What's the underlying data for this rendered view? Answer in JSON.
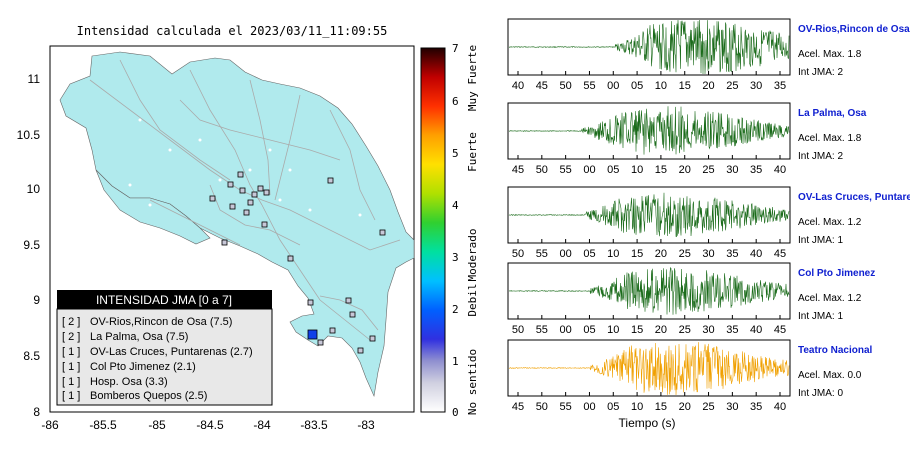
{
  "map": {
    "title": "Intensidad calculada el 2023/03/11_11:09:55",
    "lat_ticks": [
      "11",
      "10.5",
      "10",
      "9.5",
      "9",
      "8.5",
      "8"
    ],
    "lon_ticks": [
      "-86",
      "-85.5",
      "-85",
      "-84.5",
      "-84",
      "-83.5",
      "-83"
    ],
    "sea_color": "#ffffff",
    "land_color": "#b0eaed",
    "epicenter_color": "#1040e8"
  },
  "legend": {
    "title": "INTENSIDAD JMA [0 a 7]",
    "items": [
      {
        "level": "[ 2 ]",
        "name": "OV-Rios,Rincon de Osa (7.5)"
      },
      {
        "level": "[ 2 ]",
        "name": "La Palma, Osa (7.5)"
      },
      {
        "level": "[ 1 ]",
        "name": "OV-Las Cruces, Puntarenas (2.7)"
      },
      {
        "level": "[ 1 ]",
        "name": "Col Pto Jimenez (2.1)"
      },
      {
        "level": "[ 1 ]",
        "name": "Hosp. Osa (3.3)"
      },
      {
        "level": "[ 1 ]",
        "name": "Bomberos Quepos (2.5)"
      }
    ]
  },
  "colorbar": {
    "ticks": [
      "7",
      "6",
      "5",
      "4",
      "3",
      "2",
      "1",
      "0"
    ],
    "categories": [
      "Muy Fuerte",
      "Fuerte",
      "Moderado",
      "Debil",
      "No sentido"
    ]
  },
  "stations": [
    {
      "name": "OV-Rios,Rincon de Osa",
      "accel": "Acel. Max. 1.8",
      "jma": "Int JMA: 2",
      "ticks": [
        "40",
        "45",
        "50",
        "55",
        "00",
        "05",
        "10",
        "15",
        "20",
        "25",
        "30",
        "35"
      ],
      "color": "#1a6b1a",
      "peak": 1.0,
      "onset": 0.38
    },
    {
      "name": "La Palma, Osa",
      "accel": "Acel. Max. 1.8",
      "jma": "Int JMA: 2",
      "ticks": [
        "45",
        "50",
        "55",
        "00",
        "05",
        "10",
        "15",
        "20",
        "25",
        "30",
        "35",
        "40"
      ],
      "color": "#1a6b1a",
      "peak": 0.85,
      "onset": 0.26
    },
    {
      "name": "OV-Las Cruces, Puntarenas",
      "accel": "Acel. Max. 1.2",
      "jma": "Int JMA: 1",
      "ticks": [
        "50",
        "55",
        "00",
        "05",
        "10",
        "15",
        "20",
        "25",
        "30",
        "35",
        "40",
        "45"
      ],
      "color": "#1a6b1a",
      "peak": 0.75,
      "onset": 0.27
    },
    {
      "name": "Col Pto Jimenez",
      "accel": "Acel. Max. 1.2",
      "jma": "Int JMA: 1",
      "ticks": [
        "50",
        "55",
        "00",
        "05",
        "10",
        "15",
        "20",
        "25",
        "30",
        "35",
        "40",
        "45"
      ],
      "color": "#1a6b1a",
      "peak": 0.8,
      "onset": 0.29
    },
    {
      "name": "Teatro Nacional",
      "accel": "Acel. Max. 0.0",
      "jma": "Int JMA: 0",
      "ticks": [
        "45",
        "50",
        "55",
        "00",
        "05",
        "10",
        "15",
        "20",
        "25",
        "30",
        "35",
        "40"
      ],
      "color": "#f0a000",
      "peak": 0.95,
      "onset": 0.29
    }
  ],
  "xaxis_label": "Tiempo (s)"
}
